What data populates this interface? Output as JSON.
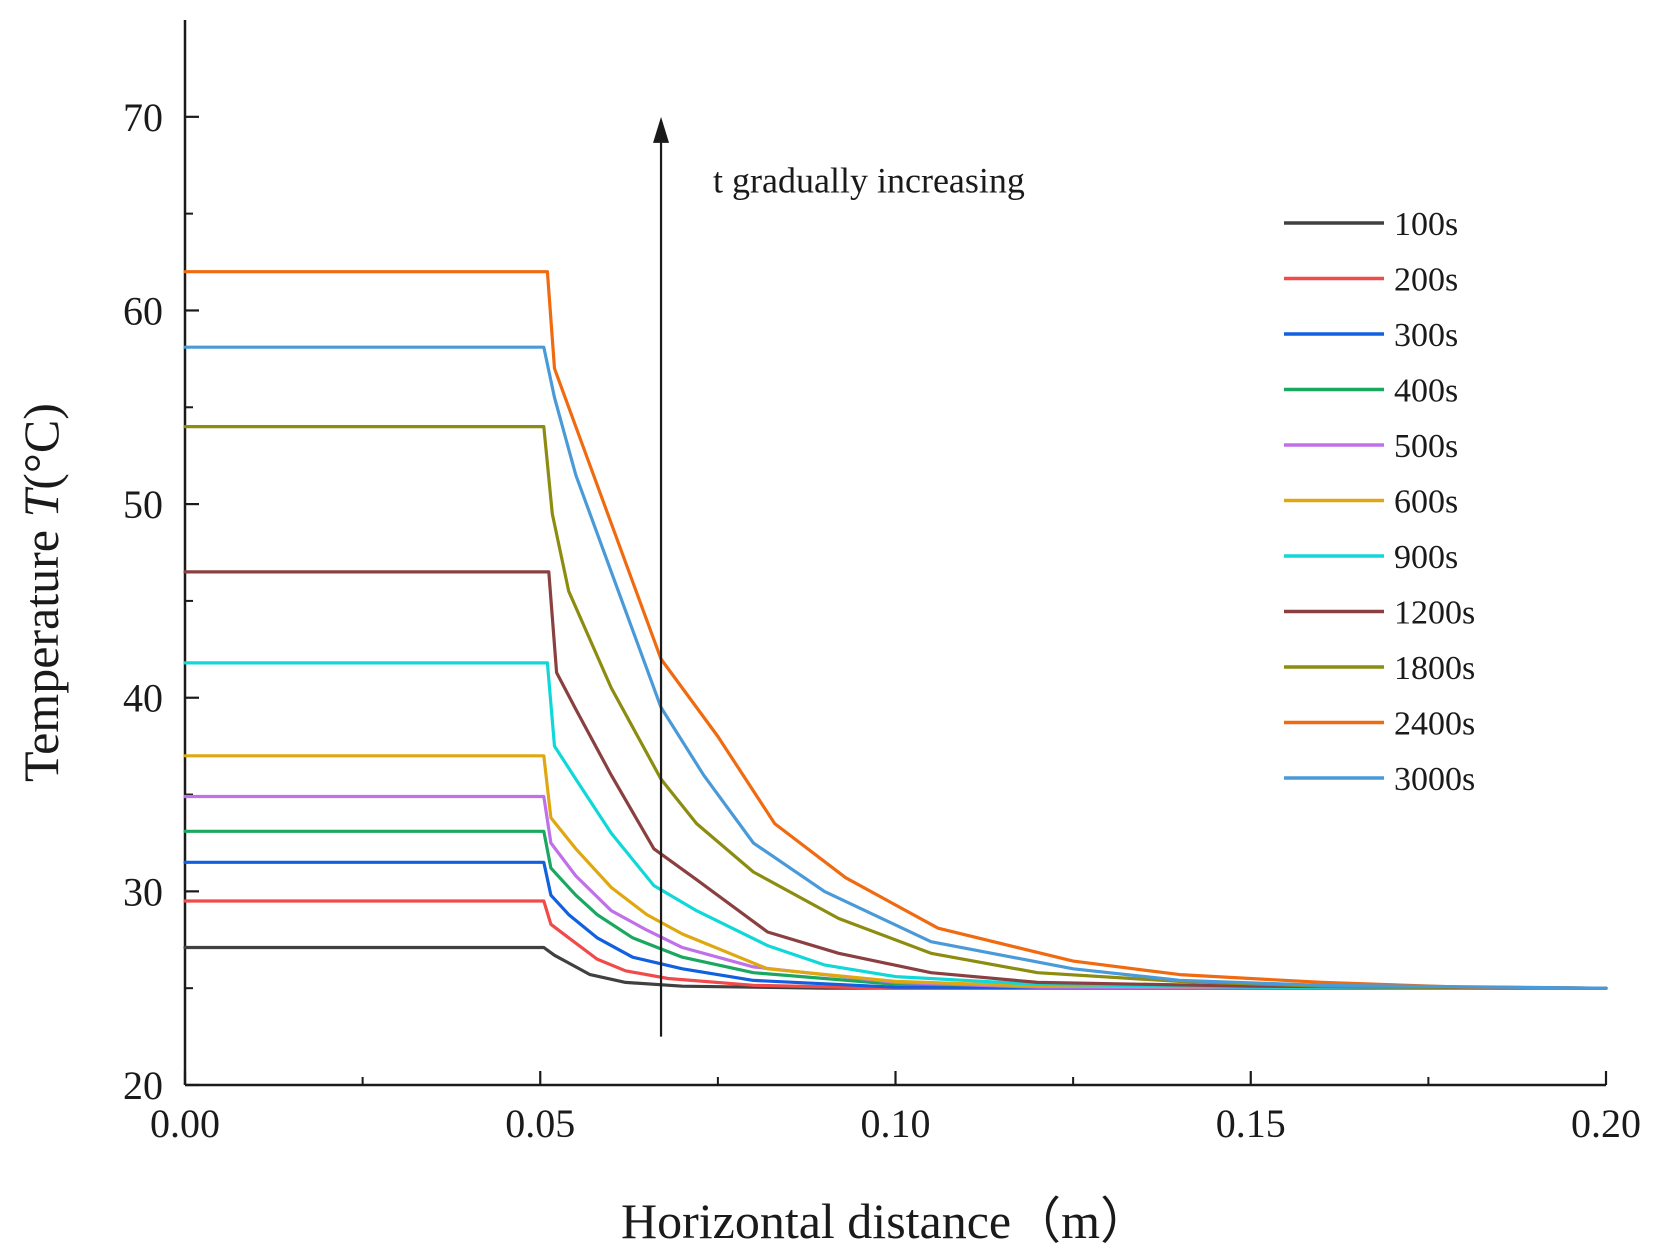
{
  "chart_data": {
    "type": "line",
    "title": "",
    "xlabel": "Horizontal distance（m）",
    "ylabel_prefix": "Temperature ",
    "ylabel_var": "T",
    "ylabel_suffix": "(°C)",
    "xlim": [
      0,
      0.2
    ],
    "ylim": [
      20,
      75
    ],
    "xticks": [
      0.0,
      0.05,
      0.1,
      0.15,
      0.2
    ],
    "xtick_labels": [
      "0.00",
      "0.05",
      "0.10",
      "0.15",
      "0.20"
    ],
    "xminor": [
      0.025,
      0.075,
      0.125,
      0.175
    ],
    "yticks": [
      20,
      30,
      40,
      50,
      60,
      70
    ],
    "ytick_labels": [
      "20",
      "30",
      "40",
      "50",
      "60",
      "70"
    ],
    "yminor": [
      25,
      35,
      45,
      55,
      65
    ],
    "legend_position": "top-right",
    "annotation": {
      "text": "t gradually increasing",
      "arrow_x": 0.067,
      "arrow_from_y": 22.5,
      "arrow_to_y": 70
    },
    "series": [
      {
        "name": "100s",
        "color": "#404040",
        "points": [
          [
            0,
            27.1
          ],
          [
            0.0505,
            27.1
          ],
          [
            0.052,
            26.7
          ],
          [
            0.054,
            26.3
          ],
          [
            0.057,
            25.7
          ],
          [
            0.062,
            25.3
          ],
          [
            0.07,
            25.1
          ],
          [
            0.09,
            25
          ],
          [
            0.2,
            25
          ]
        ]
      },
      {
        "name": "200s",
        "color": "#f04a4a",
        "points": [
          [
            0,
            29.5
          ],
          [
            0.0505,
            29.5
          ],
          [
            0.0515,
            28.3
          ],
          [
            0.054,
            27.6
          ],
          [
            0.058,
            26.5
          ],
          [
            0.062,
            25.9
          ],
          [
            0.068,
            25.5
          ],
          [
            0.08,
            25.15
          ],
          [
            0.1,
            25
          ],
          [
            0.2,
            25
          ]
        ]
      },
      {
        "name": "300s",
        "color": "#1060e0",
        "points": [
          [
            0,
            31.5
          ],
          [
            0.0505,
            31.5
          ],
          [
            0.0515,
            29.8
          ],
          [
            0.054,
            28.8
          ],
          [
            0.058,
            27.6
          ],
          [
            0.063,
            26.6
          ],
          [
            0.07,
            26
          ],
          [
            0.08,
            25.4
          ],
          [
            0.1,
            25.05
          ],
          [
            0.2,
            25
          ]
        ]
      },
      {
        "name": "400s",
        "color": "#1aa860",
        "points": [
          [
            0,
            33.1
          ],
          [
            0.0505,
            33.1
          ],
          [
            0.0515,
            31.2
          ],
          [
            0.055,
            29.8
          ],
          [
            0.058,
            28.8
          ],
          [
            0.063,
            27.6
          ],
          [
            0.07,
            26.6
          ],
          [
            0.08,
            25.8
          ],
          [
            0.1,
            25.2
          ],
          [
            0.2,
            25
          ]
        ]
      },
      {
        "name": "500s",
        "color": "#c070e8",
        "points": [
          [
            0,
            34.9
          ],
          [
            0.0505,
            34.9
          ],
          [
            0.0515,
            32.5
          ],
          [
            0.055,
            30.8
          ],
          [
            0.06,
            29
          ],
          [
            0.065,
            28
          ],
          [
            0.07,
            27.1
          ],
          [
            0.08,
            26.1
          ],
          [
            0.1,
            25.3
          ],
          [
            0.12,
            25.05
          ],
          [
            0.2,
            25
          ]
        ]
      },
      {
        "name": "600s",
        "color": "#e0a810",
        "points": [
          [
            0,
            37
          ],
          [
            0.0505,
            37
          ],
          [
            0.0515,
            33.8
          ],
          [
            0.055,
            32.2
          ],
          [
            0.06,
            30.2
          ],
          [
            0.065,
            28.8
          ],
          [
            0.07,
            27.8
          ],
          [
            0.082,
            26
          ],
          [
            0.1,
            25.35
          ],
          [
            0.12,
            25.1
          ],
          [
            0.2,
            25
          ]
        ]
      },
      {
        "name": "900s",
        "color": "#10d8d8",
        "points": [
          [
            0,
            41.8
          ],
          [
            0.051,
            41.8
          ],
          [
            0.052,
            37.5
          ],
          [
            0.055,
            35.8
          ],
          [
            0.06,
            33
          ],
          [
            0.066,
            30.3
          ],
          [
            0.072,
            29
          ],
          [
            0.082,
            27.2
          ],
          [
            0.09,
            26.2
          ],
          [
            0.1,
            25.6
          ],
          [
            0.12,
            25.2
          ],
          [
            0.15,
            25.05
          ],
          [
            0.2,
            25
          ]
        ]
      },
      {
        "name": "1200s",
        "color": "#8a4040",
        "points": [
          [
            0,
            46.5
          ],
          [
            0.0512,
            46.5
          ],
          [
            0.0523,
            41.3
          ],
          [
            0.055,
            39.4
          ],
          [
            0.06,
            36
          ],
          [
            0.066,
            32.2
          ],
          [
            0.072,
            30.6
          ],
          [
            0.082,
            27.9
          ],
          [
            0.092,
            26.8
          ],
          [
            0.105,
            25.8
          ],
          [
            0.12,
            25.3
          ],
          [
            0.15,
            25.1
          ],
          [
            0.2,
            25
          ]
        ]
      },
      {
        "name": "1800s",
        "color": "#8c8c10",
        "points": [
          [
            0,
            54
          ],
          [
            0.0505,
            54
          ],
          [
            0.0517,
            49.5
          ],
          [
            0.054,
            45.5
          ],
          [
            0.06,
            40.5
          ],
          [
            0.067,
            35.8
          ],
          [
            0.072,
            33.5
          ],
          [
            0.08,
            31
          ],
          [
            0.092,
            28.6
          ],
          [
            0.105,
            26.8
          ],
          [
            0.12,
            25.8
          ],
          [
            0.14,
            25.35
          ],
          [
            0.16,
            25.1
          ],
          [
            0.2,
            25
          ]
        ]
      },
      {
        "name": "2400s",
        "color": "#f06a10",
        "points": [
          [
            0,
            62
          ],
          [
            0.051,
            62
          ],
          [
            0.052,
            57
          ],
          [
            0.056,
            53
          ],
          [
            0.06,
            49
          ],
          [
            0.067,
            42
          ],
          [
            0.075,
            38
          ],
          [
            0.083,
            33.5
          ],
          [
            0.093,
            30.7
          ],
          [
            0.106,
            28.1
          ],
          [
            0.125,
            26.4
          ],
          [
            0.14,
            25.7
          ],
          [
            0.16,
            25.3
          ],
          [
            0.18,
            25.05
          ],
          [
            0.2,
            25
          ]
        ]
      },
      {
        "name": "3000s",
        "color": "#4a9ad8",
        "points": [
          [
            0,
            58.1
          ],
          [
            0.0505,
            58.1
          ],
          [
            0.052,
            55.5
          ],
          [
            0.055,
            51.5
          ],
          [
            0.06,
            46.5
          ],
          [
            0.067,
            39.5
          ],
          [
            0.073,
            36
          ],
          [
            0.08,
            32.5
          ],
          [
            0.09,
            30
          ],
          [
            0.105,
            27.4
          ],
          [
            0.125,
            26
          ],
          [
            0.14,
            25.4
          ],
          [
            0.16,
            25.15
          ],
          [
            0.2,
            25
          ]
        ]
      }
    ]
  }
}
